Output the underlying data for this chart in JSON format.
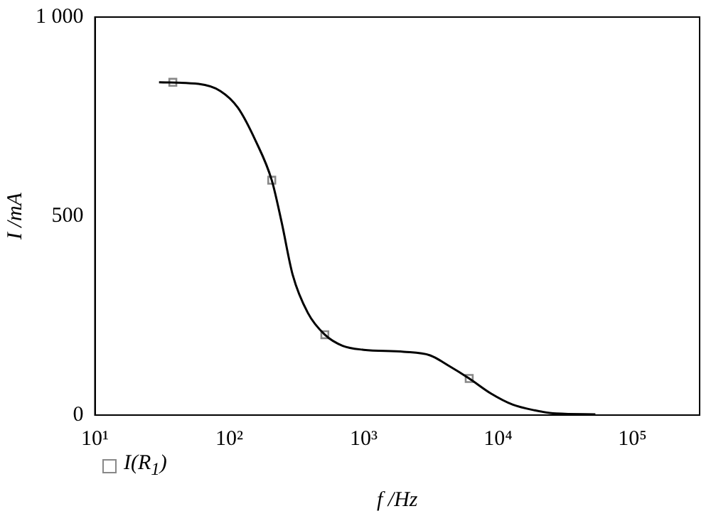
{
  "chart_data": {
    "type": "line",
    "xlabel": "f /Hz",
    "ylabel": "I /mA",
    "log": "x",
    "xlim": [
      10,
      316228
    ],
    "xticks": [
      {
        "value": 10,
        "label": "10¹"
      },
      {
        "value": 100,
        "label": "10²"
      },
      {
        "value": 1000,
        "label": "10³"
      },
      {
        "value": 10000,
        "label": "10⁴"
      },
      {
        "value": 100000,
        "label": "10⁵"
      }
    ],
    "ylim": [
      0,
      1000
    ],
    "yticks": [
      0,
      500,
      {
        "value": 1000,
        "label": "1 000"
      }
    ],
    "grid": false,
    "legend": "bottom left",
    "series": [
      {
        "type": "line",
        "color": "#000000",
        "marker": "none",
        "x": [
          30,
          59,
          86,
          116,
          157,
          207,
          245,
          296,
          384,
          514,
          698,
          1000,
          1990,
          3120,
          4200,
          6100,
          8870,
          12900,
          18700,
          27200,
          53000
        ],
        "values": [
          836,
          832,
          814,
          772,
          689,
          590,
          485,
          353,
          257,
          202,
          174,
          164,
          159,
          150,
          126,
          92,
          54,
          26,
          12,
          4,
          2
        ]
      },
      {
        "type": "scatter",
        "name": "I(R$_{1}$)",
        "color": "#888888",
        "marker": "square",
        "x": [
          38,
          207,
          514,
          6100
        ],
        "values": [
          836,
          590,
          202,
          92
        ]
      }
    ]
  }
}
